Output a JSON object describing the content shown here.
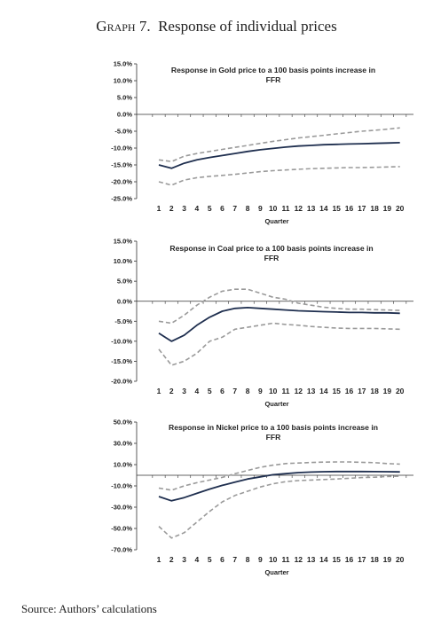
{
  "header": {
    "title_graph_word": "Graph",
    "title_number": "7.",
    "title_text": "Response of individual prices"
  },
  "source": "Source: Authors’ calculations",
  "chart_data": [
    {
      "type": "line",
      "title_line1": "Response in Gold price to a  100 basis points increase in",
      "title_line2": "FFR",
      "xlabel": "Quarter",
      "x": [
        1,
        2,
        3,
        4,
        5,
        6,
        7,
        8,
        9,
        10,
        11,
        12,
        13,
        14,
        15,
        16,
        17,
        18,
        19,
        20
      ],
      "ylim": [
        -25,
        15
      ],
      "yticks": [
        15,
        10,
        5,
        0,
        -5,
        -10,
        -15,
        -20,
        -25
      ],
      "ytick_labels": [
        "15.0%",
        "10.0%",
        "5.0%",
        "0.0%",
        "-5.0%",
        "-10.0%",
        "-15.0%",
        "-20.0%",
        "-25.0%"
      ],
      "series": [
        {
          "style": "solid",
          "color": "#1f2f4f",
          "values": [
            -15.0,
            -16.0,
            -14.5,
            -13.5,
            -12.8,
            -12.2,
            -11.6,
            -11.0,
            -10.5,
            -10.1,
            -9.7,
            -9.4,
            -9.2,
            -9.0,
            -8.9,
            -8.8,
            -8.7,
            -8.6,
            -8.5,
            -8.4
          ]
        },
        {
          "style": "dashed",
          "color": "#9a9a9a",
          "values": [
            -13.5,
            -14.0,
            -12.4,
            -11.6,
            -11.0,
            -10.4,
            -9.8,
            -9.2,
            -8.6,
            -8.0,
            -7.5,
            -7.0,
            -6.6,
            -6.2,
            -5.8,
            -5.4,
            -5.0,
            -4.7,
            -4.4,
            -4.0
          ]
        },
        {
          "style": "dashed",
          "color": "#9a9a9a",
          "values": [
            -20.0,
            -21.0,
            -19.5,
            -18.8,
            -18.4,
            -18.1,
            -17.8,
            -17.4,
            -17.0,
            -16.7,
            -16.5,
            -16.3,
            -16.1,
            -16.0,
            -15.9,
            -15.8,
            -15.8,
            -15.7,
            -15.6,
            -15.5
          ]
        }
      ]
    },
    {
      "type": "line",
      "title_line1": "Response in Coal price to a  100 basis points increase in",
      "title_line2": "FFR",
      "xlabel": "Quarter",
      "x": [
        1,
        2,
        3,
        4,
        5,
        6,
        7,
        8,
        9,
        10,
        11,
        12,
        13,
        14,
        15,
        16,
        17,
        18,
        19,
        20
      ],
      "ylim": [
        -20,
        15
      ],
      "yticks": [
        15,
        10,
        5,
        0,
        -5,
        -10,
        -15,
        -20
      ],
      "ytick_labels": [
        "15.0%",
        "10.0%",
        "5.0%",
        "0.0%",
        "-5.0%",
        "-10.0%",
        "-15.0%",
        "-20.0%"
      ],
      "series": [
        {
          "style": "solid",
          "color": "#1f2f4f",
          "values": [
            -8.0,
            -10.0,
            -8.5,
            -6.0,
            -4.0,
            -2.5,
            -1.8,
            -1.6,
            -1.8,
            -2.0,
            -2.2,
            -2.4,
            -2.5,
            -2.6,
            -2.7,
            -2.8,
            -2.8,
            -2.9,
            -2.9,
            -3.0
          ]
        },
        {
          "style": "dashed",
          "color": "#9a9a9a",
          "values": [
            -5.0,
            -5.5,
            -3.5,
            -1.0,
            1.0,
            2.5,
            3.0,
            3.0,
            2.0,
            1.0,
            0.5,
            -0.5,
            -1.0,
            -1.5,
            -1.8,
            -2.0,
            -2.0,
            -2.1,
            -2.2,
            -2.3
          ]
        },
        {
          "style": "dashed",
          "color": "#9a9a9a",
          "values": [
            -12.0,
            -16.0,
            -15.0,
            -13.0,
            -10.0,
            -9.0,
            -7.0,
            -6.5,
            -6.0,
            -5.5,
            -5.8,
            -6.0,
            -6.3,
            -6.5,
            -6.7,
            -6.8,
            -6.8,
            -6.8,
            -6.9,
            -7.0
          ]
        }
      ]
    },
    {
      "type": "line",
      "title_line1": "Response in Nickel price to a  100 basis points increase in",
      "title_line2": "FFR",
      "xlabel": "Quarter",
      "x": [
        1,
        2,
        3,
        4,
        5,
        6,
        7,
        8,
        9,
        10,
        11,
        12,
        13,
        14,
        15,
        16,
        17,
        18,
        19,
        20
      ],
      "ylim": [
        -70,
        50
      ],
      "yticks": [
        50,
        30,
        10,
        -10,
        -30,
        -50,
        -70
      ],
      "ytick_labels": [
        "50.0%",
        "30.0%",
        "10.0%",
        "-10.0%",
        "-30.0%",
        "-50.0%",
        "-70.0%"
      ],
      "series": [
        {
          "style": "solid",
          "color": "#1f2f4f",
          "values": [
            -20.0,
            -24.0,
            -21.0,
            -17.0,
            -13.0,
            -9.5,
            -6.5,
            -3.5,
            -1.5,
            0.5,
            1.5,
            2.5,
            3.0,
            3.3,
            3.5,
            3.5,
            3.5,
            3.4,
            3.3,
            3.2
          ]
        },
        {
          "style": "dashed",
          "color": "#9a9a9a",
          "values": [
            -12.0,
            -14.0,
            -10.0,
            -7.0,
            -4.5,
            -2.0,
            1.5,
            4.5,
            7.5,
            9.5,
            11.0,
            11.5,
            12.0,
            12.3,
            12.5,
            12.5,
            12.2,
            11.8,
            11.0,
            10.5
          ]
        },
        {
          "style": "dashed",
          "color": "#9a9a9a",
          "values": [
            -48.0,
            -59.0,
            -54.0,
            -44.0,
            -34.0,
            -25.0,
            -19.0,
            -15.0,
            -11.0,
            -8.0,
            -6.0,
            -5.0,
            -4.5,
            -4.0,
            -3.5,
            -2.8,
            -2.2,
            -1.8,
            -1.2,
            -0.8
          ]
        }
      ]
    }
  ]
}
